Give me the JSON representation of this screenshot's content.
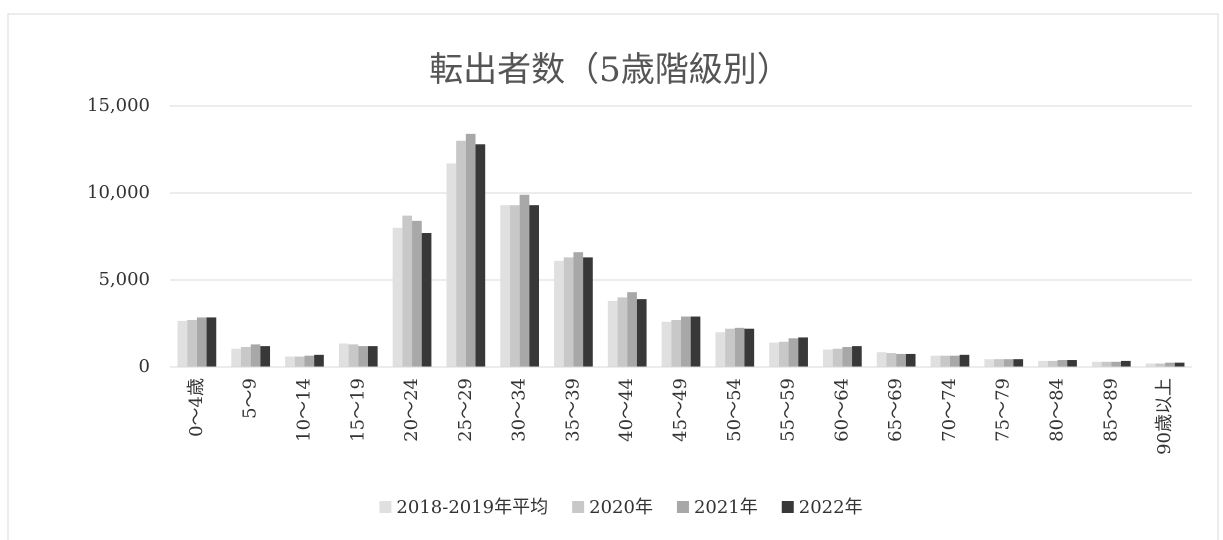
{
  "chart_data": {
    "type": "bar",
    "title": "転出者数（5歳階級別）",
    "categories": [
      "0～4歳",
      "5～9",
      "10～14",
      "15～19",
      "20～24",
      "25～29",
      "30～34",
      "35～39",
      "40～44",
      "45～49",
      "50～54",
      "55～59",
      "60～64",
      "65～69",
      "70～74",
      "75～79",
      "80～84",
      "85～89",
      "90歳以上"
    ],
    "series": [
      {
        "name": "2018-2019年平均",
        "color": "#e0e0e0",
        "values": [
          2650,
          1050,
          600,
          1350,
          8000,
          11700,
          9300,
          6100,
          3800,
          2600,
          2000,
          1400,
          1000,
          850,
          650,
          450,
          350,
          300,
          200
        ]
      },
      {
        "name": "2020年",
        "color": "#c8c8c8",
        "values": [
          2700,
          1150,
          600,
          1300,
          8700,
          13000,
          9300,
          6300,
          4000,
          2700,
          2200,
          1450,
          1050,
          800,
          650,
          450,
          350,
          300,
          200
        ]
      },
      {
        "name": "2021年",
        "color": "#a8a8a8",
        "values": [
          2850,
          1300,
          650,
          1200,
          8400,
          13400,
          9900,
          6600,
          4300,
          2900,
          2250,
          1650,
          1150,
          750,
          650,
          450,
          400,
          300,
          250
        ]
      },
      {
        "name": "2022年",
        "color": "#383838",
        "values": [
          2850,
          1200,
          700,
          1200,
          7700,
          12800,
          9300,
          6300,
          3900,
          2900,
          2200,
          1700,
          1200,
          750,
          700,
          450,
          400,
          350,
          250
        ]
      }
    ],
    "ylim": [
      0,
      15000
    ],
    "yticks": [
      0,
      {
        "value": 5000,
        "label": "5,000"
      },
      {
        "value": 10000,
        "label": "10,000"
      },
      {
        "value": 15000,
        "label": "15,000"
      }
    ],
    "grid": true,
    "legend": "bottom"
  }
}
